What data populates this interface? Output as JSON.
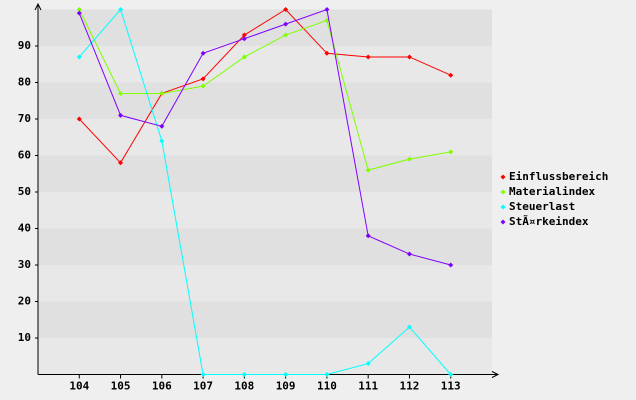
{
  "chart_data": {
    "type": "line",
    "categories": [
      "104",
      "105",
      "106",
      "107",
      "108",
      "109",
      "110",
      "111",
      "112",
      "113"
    ],
    "series": [
      {
        "name": "Einflussbereich",
        "color": "#ff0000",
        "values": [
          70,
          58,
          77,
          81,
          93,
          100,
          88,
          87,
          87,
          82
        ]
      },
      {
        "name": "Materialindex",
        "color": "#7fff00",
        "values": [
          100,
          77,
          77,
          79,
          87,
          93,
          97,
          56,
          59,
          61
        ]
      },
      {
        "name": "Steuerlast",
        "color": "#00ffff",
        "values": [
          87,
          100,
          64,
          0,
          0,
          0,
          0,
          3,
          13,
          0
        ]
      },
      {
        "name": "StÃ¤rkeindex",
        "color": "#8000ff",
        "values": [
          99,
          71,
          68,
          88,
          92,
          96,
          100,
          38,
          33,
          30
        ]
      }
    ],
    "ylim": [
      0,
      100
    ],
    "yticks": [
      10,
      20,
      30,
      40,
      50,
      60,
      70,
      80,
      90
    ],
    "stripes": true,
    "legend": "right"
  }
}
